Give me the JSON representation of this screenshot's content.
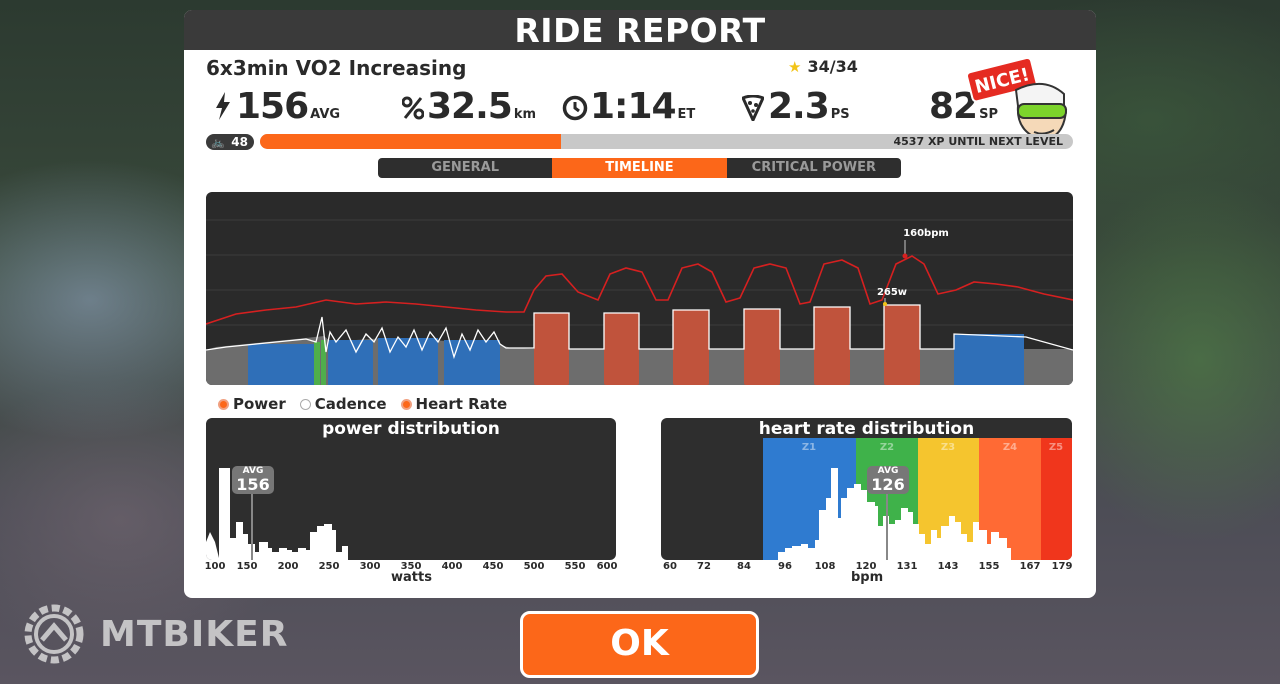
{
  "title": "RIDE REPORT",
  "workout_name": "6x3min VO2 Increasing",
  "stars": "34/34",
  "stats": {
    "power": {
      "icon": "lightning-icon",
      "value": "156",
      "unit": "AVG"
    },
    "distance": {
      "icon": "distance-icon",
      "value": "32.5",
      "unit": "km"
    },
    "time": {
      "icon": "clock-icon",
      "value": "1:14",
      "unit": "ET"
    },
    "pizza": {
      "icon": "pizza-icon",
      "value": "2.3",
      "unit": "PS"
    },
    "sweat_points": {
      "value": "82",
      "unit": "SP"
    }
  },
  "badge_text": "NICE!",
  "level": "48",
  "xp_progress": 0.37,
  "xp_text": "4537 XP UNTIL NEXT LEVEL",
  "tabs": [
    "GENERAL",
    "TIMELINE",
    "CRITICAL POWER"
  ],
  "active_tab": 1,
  "timeline": {
    "hr_peak_label": "160bpm",
    "power_peak_label": "265w"
  },
  "legend": [
    {
      "label": "Power",
      "active": true
    },
    {
      "label": "Cadence",
      "active": false
    },
    {
      "label": "Heart Rate",
      "active": true
    }
  ],
  "power_dist": {
    "title": "power distribution",
    "avg_label": "AVG",
    "avg_value": "156",
    "x_ticks": [
      "100",
      "150",
      "200",
      "250",
      "300",
      "350",
      "400",
      "450",
      "500",
      "550",
      "600"
    ],
    "xlabel": "watts"
  },
  "hr_dist": {
    "title": "heart rate distribution",
    "avg_label": "AVG",
    "avg_value": "126",
    "zones": [
      "Z1",
      "Z2",
      "Z3",
      "Z4",
      "Z5"
    ],
    "x_ticks": [
      "60",
      "72",
      "84",
      "96",
      "108",
      "120",
      "131",
      "143",
      "155",
      "167",
      "179"
    ],
    "xlabel": "bpm"
  },
  "ok_label": "OK",
  "watermark": "MTBIKER"
}
